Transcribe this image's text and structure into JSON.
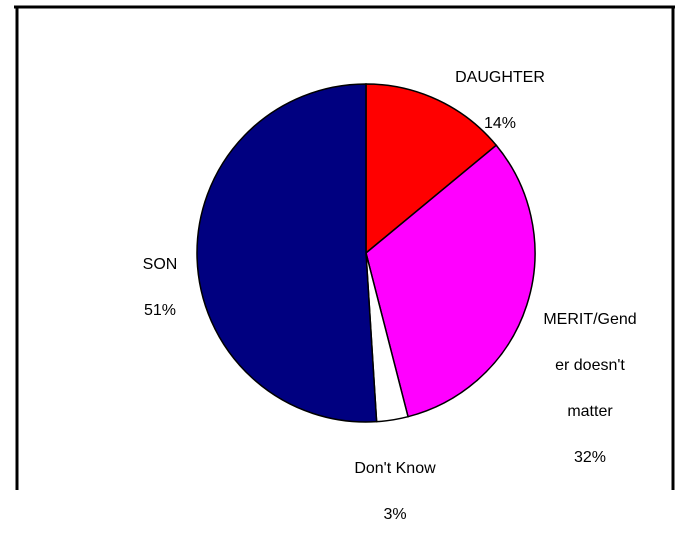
{
  "chart_data": {
    "type": "pie",
    "categories": [
      "DAUGHTER",
      "MERIT/Gender doesn't matter",
      "Don't Know",
      "SON"
    ],
    "values": [
      14,
      32,
      3,
      51
    ],
    "percent_labels": [
      "14%",
      "32%",
      "3%",
      "51%"
    ],
    "label_lines": [
      [
        "DAUGHTER"
      ],
      [
        "MERIT/Gend",
        "er doesn't",
        "matter"
      ],
      [
        "Don't Know"
      ],
      [
        "SON"
      ]
    ],
    "colors": [
      "#ff0000",
      "#ff00ff",
      "#ffffff",
      "#000080"
    ],
    "start": "top",
    "direction": "clockwise",
    "legend": "none"
  }
}
